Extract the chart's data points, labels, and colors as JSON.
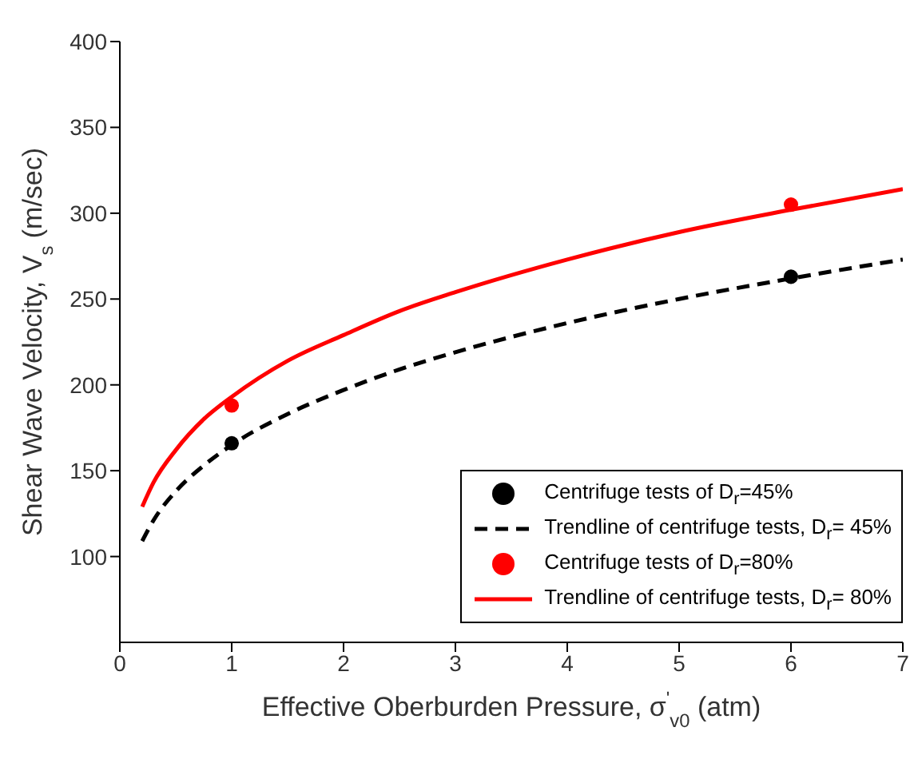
{
  "chart_data": {
    "type": "line",
    "xlabel": "Effective Oberburden Pressure, σ$^{'}$$_{v0}$ (atm)",
    "ylabel": "Shear Wave Velocity, V$_{s}$ (m/sec)",
    "xlim": [
      0,
      7
    ],
    "xticks": [
      0,
      1,
      2,
      3,
      4,
      5,
      6,
      7
    ],
    "ylim": [
      50,
      400
    ],
    "yticks": [
      100,
      150,
      200,
      250,
      300,
      350,
      400
    ],
    "grid": false,
    "legend": "bottom right",
    "series": [
      {
        "name": "Centrifuge tests of  D$_{r}$=45%",
        "type": "scatter",
        "marker": "circle",
        "color": "#000000",
        "x": [
          1,
          6
        ],
        "values": [
          166,
          263
        ]
      },
      {
        "name": "Trendline of centrifuge tests, D$_{r}$= 45%",
        "line_style": "dashed",
        "marker": "none",
        "color": "#000000",
        "x": [
          0.2,
          0.3,
          0.5,
          0.75,
          1,
          1.5,
          2,
          2.5,
          3,
          4,
          5,
          6,
          7
        ],
        "values": [
          109,
          121,
          138,
          153,
          165,
          183,
          197,
          209,
          219,
          236,
          250,
          262,
          273
        ]
      },
      {
        "name": "Centrifuge tests of  D$_{r}$=80%",
        "type": "scatter",
        "marker": "circle",
        "color": "#ff0000",
        "x": [
          1,
          6
        ],
        "values": [
          188,
          305
        ]
      },
      {
        "name": "Trendline of centrifuge tests, D$_{r}$= 80%",
        "line_style": "solid",
        "marker": "none",
        "color": "#ff0000",
        "x": [
          0.2,
          0.3,
          0.5,
          0.75,
          1,
          1.5,
          2,
          2.5,
          3,
          4,
          5,
          6,
          7
        ],
        "values": [
          129,
          143,
          162,
          180,
          193,
          214,
          229,
          243,
          254,
          273,
          289,
          302,
          314
        ]
      }
    ]
  }
}
